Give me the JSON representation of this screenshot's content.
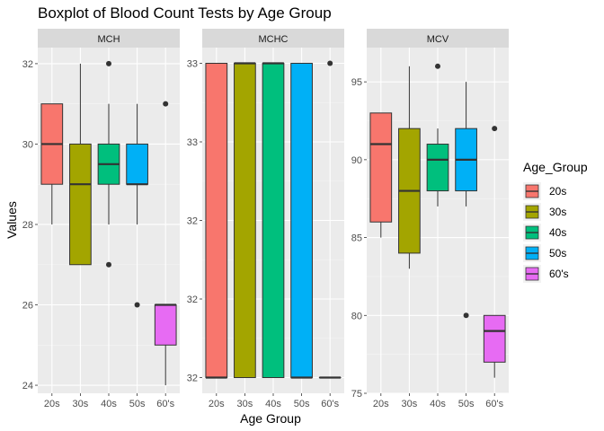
{
  "chart_data": {
    "type": "boxplot",
    "title": "Boxplot of Blood Count Tests by Age Group",
    "xlabel": "Age Group",
    "ylabel": "Values",
    "categories": [
      "20s",
      "30s",
      "40s",
      "50s",
      "60's"
    ],
    "colors": [
      "#F8766D",
      "#A3A500",
      "#00BF7D",
      "#00B0F6",
      "#E76BF3"
    ],
    "legend": {
      "title": "Age_Group",
      "entries": [
        "20s",
        "30s",
        "40s",
        "50s",
        "60's"
      ],
      "position": "right"
    },
    "grid": true,
    "panels": [
      {
        "name": "MCH",
        "ylim": [
          23.8,
          32.4
        ],
        "yticks": [
          24,
          26,
          28,
          30,
          32
        ],
        "ytick_labels": [
          "24",
          "26",
          "28",
          "30",
          "32"
        ],
        "boxes": [
          {
            "min": 28,
            "q1": 29,
            "median": 30,
            "q3": 31,
            "max": 31,
            "outliers": []
          },
          {
            "min": 27,
            "q1": 27,
            "median": 29,
            "q3": 30,
            "max": 32,
            "outliers": []
          },
          {
            "min": 28,
            "q1": 29,
            "median": 29.5,
            "q3": 30,
            "max": 31,
            "outliers": [
              32,
              27
            ]
          },
          {
            "min": 28,
            "q1": 29,
            "median": 29,
            "q3": 30,
            "max": 31,
            "outliers": [
              26
            ]
          },
          {
            "min": 24,
            "q1": 25,
            "median": 26,
            "q3": 26,
            "max": 26,
            "outliers": [
              31
            ]
          }
        ]
      },
      {
        "name": "MCHC",
        "ylim": [
          31.95,
          33.05
        ],
        "yticks": [
          32,
          32.25,
          32.5,
          32.75,
          33
        ],
        "ytick_labels": [
          "32",
          "32",
          "32",
          "33",
          "33"
        ],
        "boxes": [
          {
            "min": 32,
            "q1": 32,
            "median": 32,
            "q3": 33,
            "max": 33,
            "outliers": []
          },
          {
            "min": 32,
            "q1": 32,
            "median": 33,
            "q3": 33,
            "max": 33,
            "outliers": []
          },
          {
            "min": 32,
            "q1": 32,
            "median": 33,
            "q3": 33,
            "max": 33,
            "outliers": []
          },
          {
            "min": 32,
            "q1": 32,
            "median": 32,
            "q3": 33,
            "max": 33,
            "outliers": []
          },
          {
            "min": 32,
            "q1": 32,
            "median": 32,
            "q3": 32,
            "max": 32,
            "outliers": [
              33
            ]
          }
        ]
      },
      {
        "name": "MCV",
        "ylim": [
          75,
          97.2
        ],
        "yticks": [
          75,
          80,
          85,
          90,
          95
        ],
        "ytick_labels": [
          "75",
          "80",
          "85",
          "90",
          "95"
        ],
        "boxes": [
          {
            "min": 85,
            "q1": 86,
            "median": 91,
            "q3": 93,
            "max": 93,
            "outliers": []
          },
          {
            "min": 83,
            "q1": 84,
            "median": 88,
            "q3": 92,
            "max": 96,
            "outliers": []
          },
          {
            "min": 87,
            "q1": 88,
            "median": 90,
            "q3": 91,
            "max": 92,
            "outliers": [
              96
            ]
          },
          {
            "min": 87,
            "q1": 88,
            "median": 90,
            "q3": 92,
            "max": 95,
            "outliers": [
              80
            ]
          },
          {
            "min": 76,
            "q1": 77,
            "median": 79,
            "q3": 80,
            "max": 80,
            "outliers": [
              92
            ]
          }
        ]
      }
    ]
  }
}
